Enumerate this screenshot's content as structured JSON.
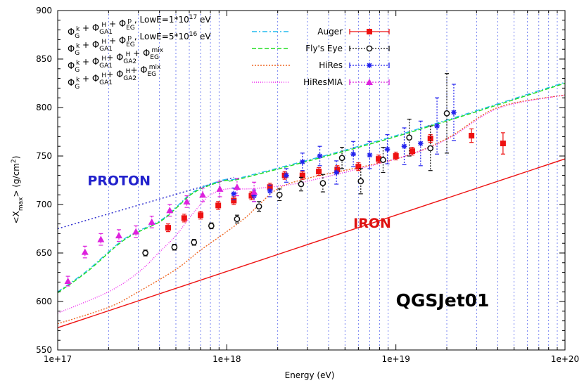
{
  "chart_data": {
    "type": "scatter",
    "xlabel": "Energy (eV)",
    "ylabel": "<X",
    "ylabel_sub": "max",
    "ylabel_unit": "> (g/cm",
    "ylabel_sup": "2",
    "ylabel_close": ")",
    "xscale": "log",
    "xlim": [
      1e+17,
      1e+20
    ],
    "ylim": [
      550,
      900
    ],
    "x_ticks": [
      {
        "v": 1e+17,
        "label": "1e+17"
      },
      {
        "v": 1e+18,
        "label": "1e+18"
      },
      {
        "v": 1e+19,
        "label": "1e+19"
      },
      {
        "v": 1e+20,
        "label": "1e+20"
      }
    ],
    "y_ticks": [
      {
        "v": 550,
        "label": "550"
      },
      {
        "v": 600,
        "label": "600"
      },
      {
        "v": 650,
        "label": "650"
      },
      {
        "v": 700,
        "label": "700"
      },
      {
        "v": 750,
        "label": "750"
      },
      {
        "v": 800,
        "label": "800"
      },
      {
        "v": 850,
        "label": "850"
      },
      {
        "v": 900,
        "label": "900"
      }
    ],
    "grid": "vertical dotted at each decade subdivision",
    "annotations": [
      {
        "text": "PROTON",
        "x": 1.5e+17,
        "y": 720,
        "style": "proton"
      },
      {
        "text": "IRON",
        "x": 5.6e+18,
        "y": 676,
        "style": "iron"
      },
      {
        "text": "QGSJet01",
        "x": 1e+19,
        "y": 595,
        "style": "model"
      }
    ],
    "reference_lines": [
      {
        "name": "proton",
        "color": "#2222cc",
        "dash": "2,3",
        "x": [
          1e+17,
          1.1e+18
        ],
        "y": [
          675,
          728
        ]
      },
      {
        "name": "iron",
        "color": "#ee1111",
        "dash": "",
        "x": [
          1e+17,
          1e+20
        ],
        "y": [
          573,
          747
        ]
      }
    ],
    "model_lines": [
      {
        "legend": "lowE1e17",
        "color": "#22bbee",
        "dash": "7,3,2,3",
        "x": [
          1e+17,
          1.5e+17,
          2.5e+17,
          4e+17,
          5e+17,
          6e+17,
          7e+17,
          8e+17,
          9e+17,
          1e+18,
          1.3e+18,
          1e+19,
          1e+20
        ],
        "y": [
          610,
          632,
          665,
          683,
          697,
          710,
          717,
          721,
          724,
          726,
          729,
          771,
          826
        ]
      },
      {
        "legend": "lowE5e16",
        "color": "#22dd22",
        "dash": "6,3",
        "x": [
          1e+17,
          1.5e+17,
          2.5e+17,
          4e+17,
          5e+17,
          6e+17,
          7e+17,
          8e+17,
          9e+17,
          1e+18,
          1.3e+18,
          1e+19,
          1e+20
        ],
        "y": [
          609,
          631,
          664,
          682,
          696,
          709,
          716,
          720,
          723,
          725,
          728,
          770,
          825
        ]
      },
      {
        "legend": "GA2_EGmix",
        "color": "#ee6622",
        "dash": "2,2",
        "x": [
          1e+17,
          2e+17,
          3e+17,
          5e+17,
          7e+17,
          1e+18,
          1.3e+18,
          1.6e+18,
          2e+18,
          3e+18,
          1e+19,
          2e+19,
          4e+19,
          1e+20
        ],
        "y": [
          577,
          594,
          610,
          633,
          653,
          672,
          687,
          702,
          716,
          727,
          747,
          768,
          800,
          813
        ]
      },
      {
        "legend": "GA1_GA2_EGmix",
        "color": "#ee22ee",
        "dash": "1,2",
        "x": [
          1e+17,
          2e+17,
          3e+17,
          4e+17,
          5e+17,
          6e+17,
          7e+17,
          8e+17,
          1e+18,
          1.3e+18,
          1.6e+18,
          2e+18,
          3e+18,
          1e+19,
          2e+19,
          4e+19,
          1e+20
        ],
        "y": [
          588,
          610,
          630,
          651,
          668,
          686,
          700,
          710,
          716,
          716,
          717,
          719,
          724,
          747,
          767,
          799,
          813
        ]
      }
    ],
    "data_series": [
      {
        "name": "Auger",
        "color": "#ee1111",
        "marker": "square",
        "x": [
          4.5e+17,
          5.6e+17,
          7e+17,
          8.9e+17,
          1.1e+18,
          1.4e+18,
          1.8e+18,
          2.2e+18,
          2.8e+18,
          3.5e+18,
          4.5e+18,
          6e+18,
          7.9e+18,
          1e+19,
          1.25e+19,
          1.6e+19,
          2.8e+19,
          4.3e+19
        ],
        "y": [
          676,
          686,
          689,
          699,
          704,
          709,
          718,
          730,
          730,
          734,
          736,
          739,
          747,
          750,
          755,
          768,
          771,
          763
        ],
        "err": [
          4,
          4,
          4,
          4,
          4,
          4,
          4,
          4,
          4,
          4,
          4,
          4,
          4,
          4,
          4,
          4,
          7,
          11
        ]
      },
      {
        "name": "Fly's Eye",
        "color": "#111111",
        "marker": "circle",
        "x": [
          3.3e+17,
          4.9e+17,
          6.4e+17,
          8.1e+17,
          1.15e+18,
          1.55e+18,
          2.05e+18,
          2.75e+18,
          3.7e+18,
          4.8e+18,
          6.2e+18,
          8.4e+18,
          1.2e+19,
          1.6e+19,
          2e+19
        ],
        "y": [
          650,
          656,
          661,
          678,
          685,
          698,
          710,
          721,
          722,
          748,
          724,
          746,
          769,
          758,
          794
        ],
        "err": [
          3,
          3,
          3,
          3,
          4,
          5,
          6,
          7,
          9,
          11,
          13,
          13,
          19,
          23,
          41
        ]
      },
      {
        "name": "HiRes",
        "color": "#2222ee",
        "marker": "star",
        "x": [
          1.1e+18,
          1.45e+18,
          1.8e+18,
          2.25e+18,
          2.8e+18,
          3.55e+18,
          4.45e+18,
          5.6e+18,
          7e+18,
          8.9e+18,
          1.12e+19,
          1.4e+19,
          1.75e+19,
          2.2e+19
        ],
        "y": [
          711,
          709,
          714,
          730,
          744,
          750,
          733,
          752,
          751,
          757,
          760,
          763,
          781,
          795
        ],
        "err": [
          6,
          6,
          6,
          7,
          9,
          10,
          12,
          13,
          14,
          15,
          19,
          23,
          29,
          29
        ]
      },
      {
        "name": "HiResMIA",
        "color": "#dd22dd",
        "marker": "triangle",
        "x": [
          1.15e+17,
          1.45e+17,
          1.8e+17,
          2.3e+17,
          2.9e+17,
          3.6e+17,
          4.6e+17,
          5.8e+17,
          7.2e+17,
          9.1e+17,
          1.15e+18,
          1.45e+18
        ],
        "y": [
          621,
          651,
          664,
          668,
          672,
          682,
          694,
          703,
          710,
          716,
          718,
          713
        ],
        "err": [
          5,
          6,
          6,
          6,
          6,
          6,
          6,
          6,
          7,
          8,
          9,
          10
        ]
      }
    ],
    "legend": {
      "placement": "top",
      "model_entries": [
        {
          "id": "lowE1e17",
          "phi1": "Φ",
          "s1": "G",
          "u1": "k",
          "op1": " + ",
          "phi2": "Φ",
          "s2": "GA1",
          "u2": "H",
          "op2": " + ",
          "phi3": "Φ",
          "s3": "EG",
          "u3": "p",
          "tail": " , LowE=1*10",
          "exp": "17",
          "unit": " eV"
        },
        {
          "id": "lowE5e16",
          "phi1": "Φ",
          "s1": "G",
          "u1": "k",
          "op1": " + ",
          "phi2": "Φ",
          "s2": "GA1",
          "u2": "H",
          "op2": " + ",
          "phi3": "Φ",
          "s3": "EG",
          "u3": "p",
          "tail": " , LowE=5*10",
          "exp": "16",
          "unit": " eV"
        },
        {
          "id": "GA2_EGmix",
          "phi1": "Φ",
          "s1": "G",
          "u1": "k",
          "op1": " + ",
          "phi2": "Φ",
          "s2": "GA1",
          "u2": "H",
          "op2": "+ ",
          "phi3": "Φ",
          "s3": "GA2",
          "u3": "H",
          "op3": " + ",
          "phi4": "Φ",
          "s4": "EG",
          "u4": "mix"
        },
        {
          "id": "GA1_GA2_EGmix",
          "phi1": "Φ",
          "s1": "G",
          "u1": "k",
          "op1": " + ",
          "phi2": "Φ",
          "s2": "GA1",
          "u2": "H",
          "op2": "+ ",
          "phi3": "Φ",
          "s3": "GA2",
          "u3": "H",
          "op3": "+ ",
          "phi4": "Φ",
          "s4": "EG",
          "u4": "mix"
        }
      ],
      "data_entries": [
        "Auger",
        "Fly's Eye",
        "HiRes",
        "HiResMIA"
      ]
    }
  }
}
